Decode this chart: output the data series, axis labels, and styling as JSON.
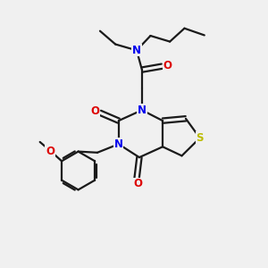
{
  "bg_color": "#f0f0f0",
  "bond_color": "#1a1a1a",
  "n_color": "#0000ee",
  "o_color": "#dd0000",
  "s_color": "#bbbb00",
  "line_width": 1.6,
  "font_size": 8.5,
  "figsize": [
    3.0,
    3.0
  ],
  "dpi": 100,
  "xlim": [
    0,
    10
  ],
  "ylim": [
    0,
    10
  ]
}
